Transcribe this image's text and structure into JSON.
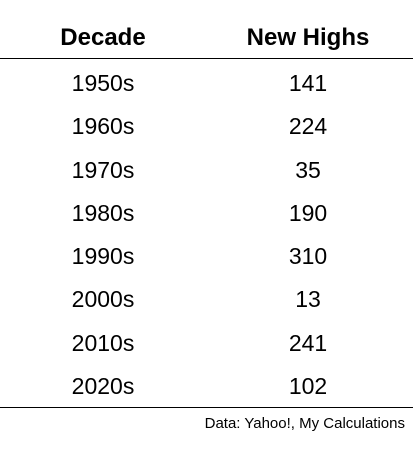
{
  "chart_data": {
    "type": "table",
    "columns": [
      "Decade",
      "New Highs"
    ],
    "rows": [
      [
        "1950s",
        141
      ],
      [
        "1960s",
        224
      ],
      [
        "1970s",
        35
      ],
      [
        "1980s",
        190
      ],
      [
        "1990s",
        310
      ],
      [
        "2000s",
        13
      ],
      [
        "2010s",
        241
      ],
      [
        "2020s",
        102
      ]
    ],
    "source": "Data: Yahoo!, My Calculations"
  }
}
